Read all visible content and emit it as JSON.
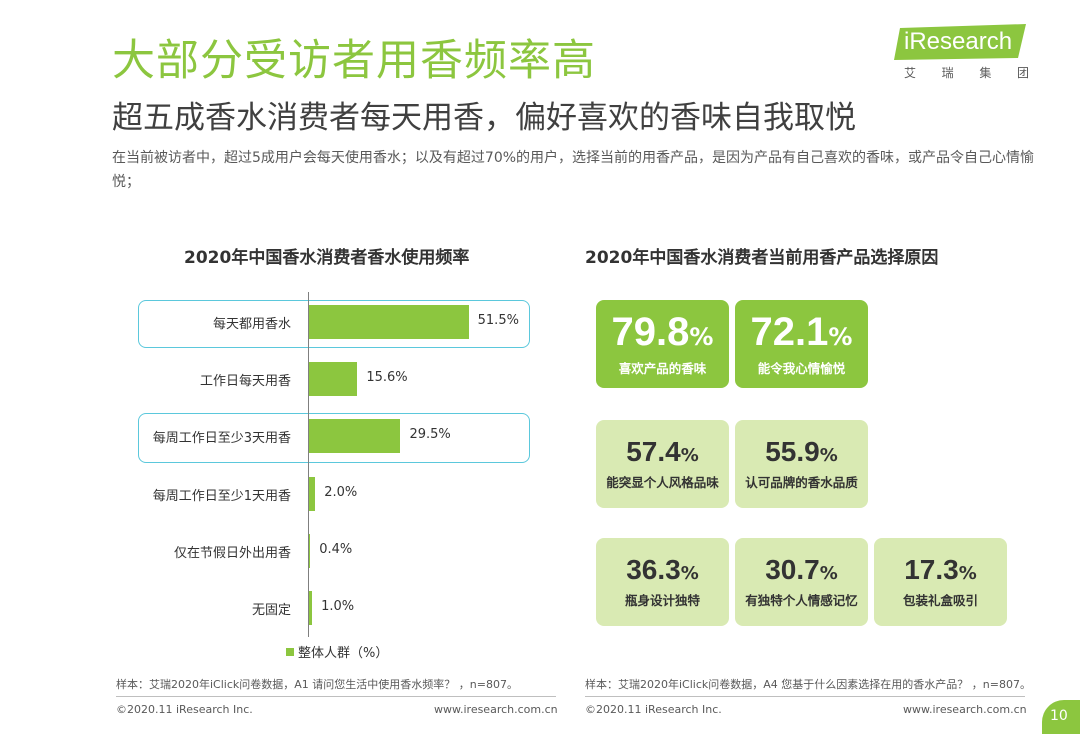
{
  "header": {
    "title": "大部分受访者用香频率高",
    "subtitle": "超五成香水消费者每天用香，偏好喜欢的香味自我取悦",
    "description": "在当前被访者中，超过5成用户会每天使用香水；以及有超过70%的用户，选择当前的用香产品，是因为产品有自己喜欢的香味，或产品令自己心情愉悦；"
  },
  "logo": {
    "word": "iResearch",
    "cn_chars": [
      "艾",
      "瑞",
      "集",
      "团"
    ]
  },
  "colors": {
    "brand_green": "#8cc63f",
    "light_green": "#d9eab3",
    "highlight": "#5bc8dc"
  },
  "chart_data": [
    {
      "type": "bar",
      "orientation": "horizontal",
      "title": "2020年中国香水消费者香水使用频率",
      "categories": [
        "每天都用香水",
        "工作日每天用香",
        "每周工作日至少3天用香",
        "每周工作日至少1天用香",
        "仅在节假日外出用香",
        "无固定"
      ],
      "series": [
        {
          "name": "整体人群（%）",
          "values": [
            51.5,
            15.6,
            29.5,
            2.0,
            0.4,
            1.0
          ]
        }
      ],
      "value_labels": [
        "51.5%",
        "15.6%",
        "29.5%",
        "2.0%",
        "0.4%",
        "1.0%"
      ],
      "highlighted": [
        0,
        2
      ],
      "legend": "整体人群（%）",
      "xlim": [
        0,
        100
      ]
    },
    {
      "type": "table",
      "title": "2020年中国香水消费者当前用香产品选择原因",
      "items": [
        {
          "value": "79.8",
          "label": "喜欢产品的香味",
          "style": "dark"
        },
        {
          "value": "72.1",
          "label": "能令我心情愉悦",
          "style": "dark"
        },
        {
          "value": "57.4",
          "label": "能突显个人风格品味",
          "style": "light"
        },
        {
          "value": "55.9",
          "label": "认可品牌的香水品质",
          "style": "light"
        },
        {
          "value": "36.3",
          "label": "瓶身设计独特",
          "style": "light"
        },
        {
          "value": "30.7",
          "label": "有独特个人情感记忆",
          "style": "light"
        },
        {
          "value": "17.3",
          "label": "包装礼盒吸引",
          "style": "light"
        }
      ],
      "unit": "%"
    }
  ],
  "footer": {
    "note_left": "样本：艾瑞2020年iClick问卷数据，A1 请问您生活中使用香水频率？ ，n=807。",
    "note_right": "样本：艾瑞2020年iClick问卷数据，A4 您基于什么因素选择在用的香水产品？ ，n=807。",
    "copyright_left": "©2020.11 iResearch Inc.",
    "website_left": "www.iresearch.com.cn",
    "copyright_right": "©2020.11 iResearch Inc.",
    "website_right": "www.iresearch.com.cn",
    "page_number": "10"
  }
}
